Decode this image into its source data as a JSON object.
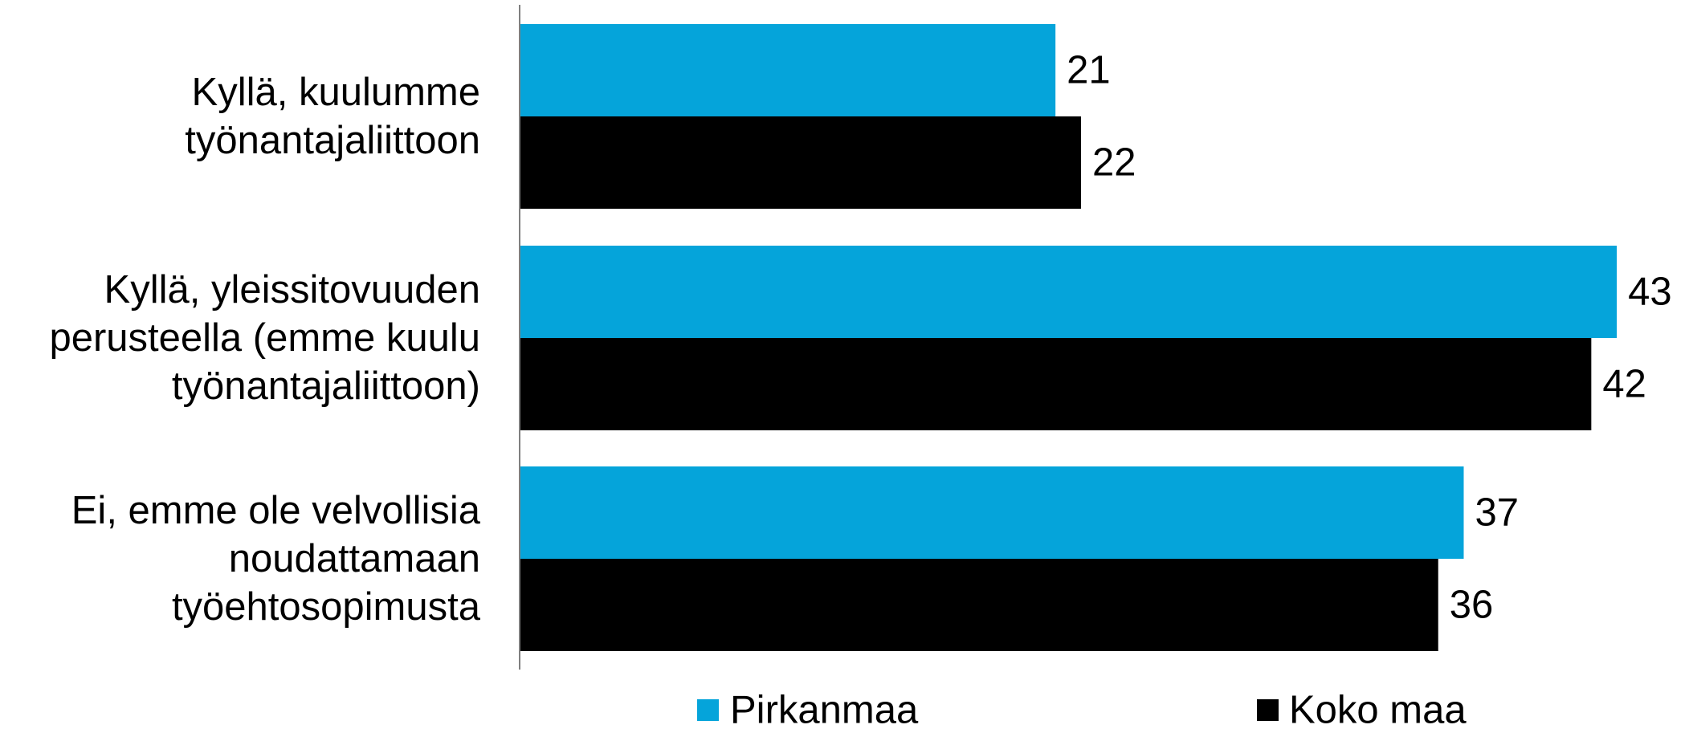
{
  "chart_data": {
    "type": "bar",
    "orientation": "horizontal",
    "categories": [
      [
        "Kyllä, kuulumme",
        "työnantajaliittoon"
      ],
      [
        "Kyllä, yleissitovuuden",
        "perusteella (emme kuulu",
        "työnantajaliittoon)"
      ],
      [
        "Ei, emme ole velvollisia",
        "noudattamaan",
        "työehtosopimusta"
      ]
    ],
    "series": [
      {
        "name": "Pirkanmaa",
        "color": "#05A4DA",
        "values": [
          21,
          43,
          37
        ]
      },
      {
        "name": "Koko maa",
        "color": "#000000",
        "values": [
          22,
          42,
          36
        ]
      }
    ],
    "xlim": [
      0,
      44
    ],
    "grid": false,
    "data_labels": true,
    "legend": {
      "position": "bottom"
    },
    "title": "",
    "xlabel": "",
    "ylabel": ""
  }
}
